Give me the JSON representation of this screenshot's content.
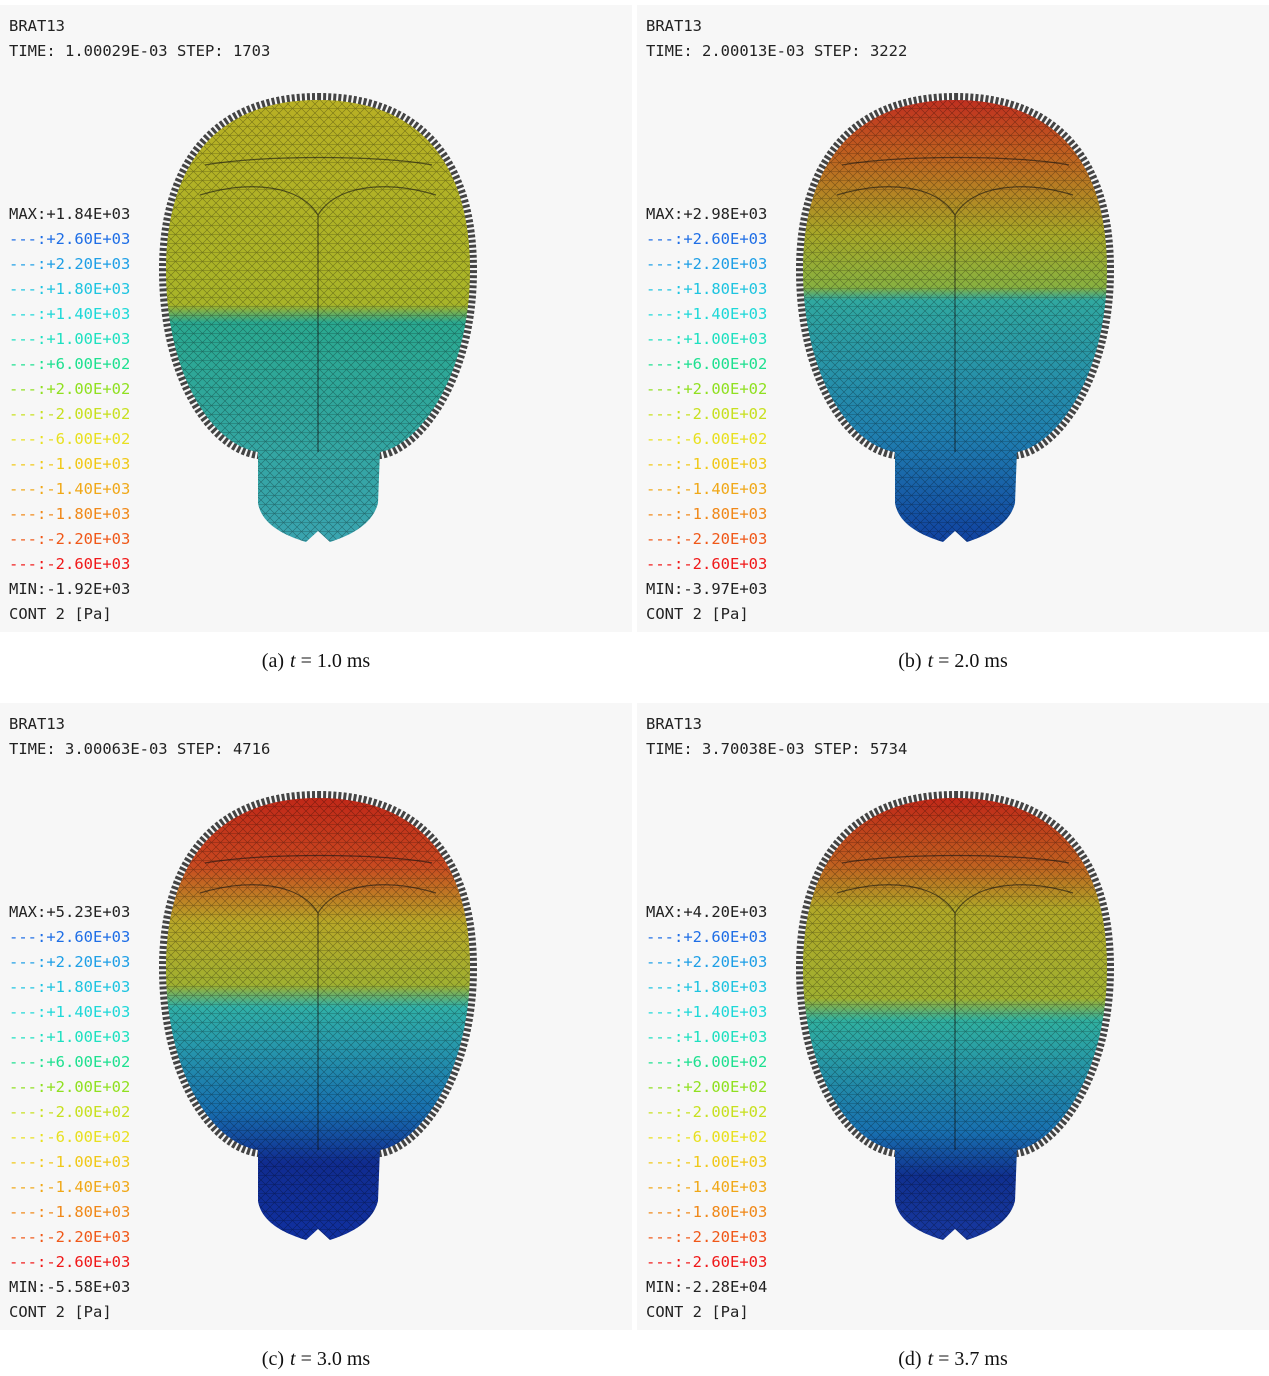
{
  "panels": [
    {
      "title": "BRAT13",
      "time": "TIME: 1.00029E-03  STEP: 1703",
      "max": "MAX:+1.84E+03",
      "min": "MIN:-1.92E+03",
      "unit": "CONT 2 [Pa]",
      "caption": "(a)",
      "caption_var": "t",
      "caption_rest": " = 1.0 ms"
    },
    {
      "title": "BRAT13",
      "time": "TIME: 2.00013E-03  STEP: 3222",
      "max": "MAX:+2.98E+03",
      "min": "MIN:-3.97E+03",
      "unit": "CONT 2 [Pa]",
      "caption": "(b)",
      "caption_var": "t",
      "caption_rest": " = 2.0 ms"
    },
    {
      "title": "BRAT13",
      "time": "TIME: 3.00063E-03  STEP: 4716",
      "max": "MAX:+5.23E+03",
      "min": "MIN:-5.58E+03",
      "unit": "CONT 2 [Pa]",
      "caption": "(c)",
      "caption_var": "t",
      "caption_rest": " = 3.0 ms"
    },
    {
      "title": "BRAT13",
      "time": "TIME: 3.70038E-03  STEP: 5734",
      "max": "MAX:+4.20E+03",
      "min": "MIN:-2.28E+04",
      "unit": "CONT 2 [Pa]",
      "caption": "(d)",
      "caption_var": "t",
      "caption_rest": " = 3.7 ms"
    }
  ],
  "legend_levels": [
    {
      "text": "---:+2.60E+03",
      "color": "#1e6ee6"
    },
    {
      "text": "---:+2.20E+03",
      "color": "#1e9fe6"
    },
    {
      "text": "---:+1.80E+03",
      "color": "#1ec4e0"
    },
    {
      "text": "---:+1.40E+03",
      "color": "#1ed8d8"
    },
    {
      "text": "---:+1.00E+03",
      "color": "#1ee0c0"
    },
    {
      "text": "---:+6.00E+02",
      "color": "#1ee090"
    },
    {
      "text": "---:+2.00E+02",
      "color": "#90e020"
    },
    {
      "text": "---:-2.00E+02",
      "color": "#c8e020"
    },
    {
      "text": "---:-6.00E+02",
      "color": "#e8e020"
    },
    {
      "text": "---:-1.00E+03",
      "color": "#f0c818"
    },
    {
      "text": "---:-1.40E+03",
      "color": "#f0a818"
    },
    {
      "text": "---:-1.80E+03",
      "color": "#f08818"
    },
    {
      "text": "---:-2.20E+03",
      "color": "#f05818"
    },
    {
      "text": "---:-2.60E+03",
      "color": "#f01818"
    }
  ]
}
